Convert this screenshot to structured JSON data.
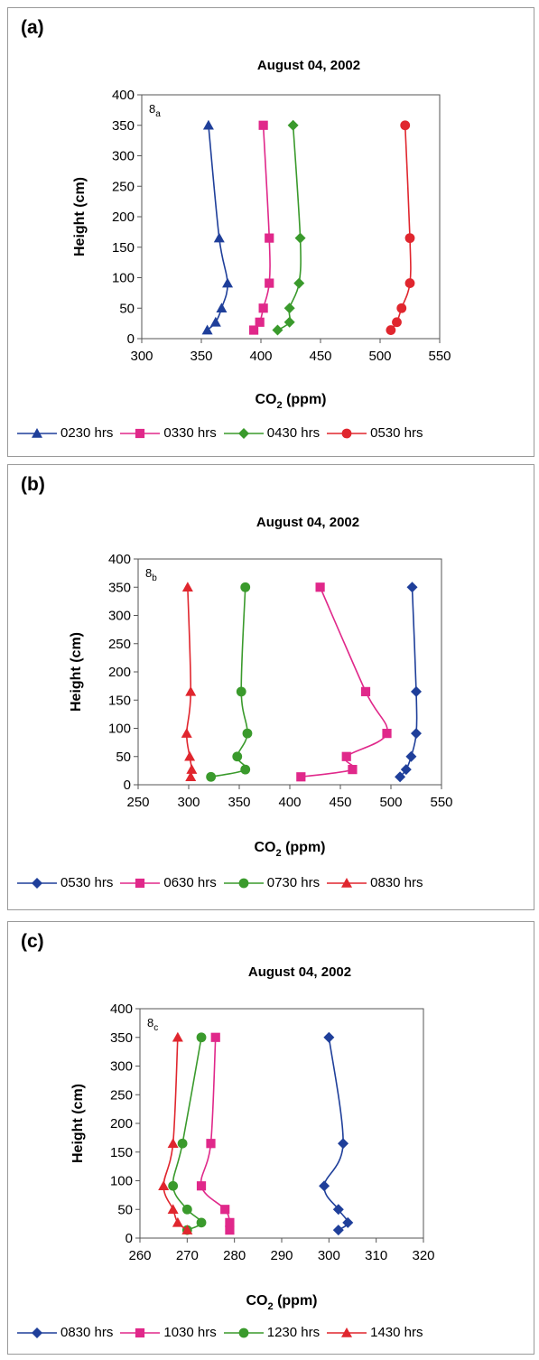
{
  "chart_data": [
    {
      "type": "line",
      "panel_label": "(a)",
      "title": "August 04, 2002",
      "inset_label": "8a",
      "xlabel": "CO2 (ppm)",
      "ylabel": "Height (cm)",
      "xlim": [
        300,
        550
      ],
      "ylim": [
        0,
        400
      ],
      "xticks": [
        300,
        350,
        400,
        450,
        500,
        550
      ],
      "yticks": [
        0,
        50,
        100,
        150,
        200,
        250,
        300,
        350,
        400
      ],
      "grid": false,
      "legend_position": "bottom",
      "series": [
        {
          "name": "0230 hrs",
          "color": "#1f3f9a",
          "marker": "triangle",
          "points": [
            [
              355,
              14
            ],
            [
              362,
              27
            ],
            [
              367,
              50
            ],
            [
              372,
              91
            ],
            [
              365,
              165
            ],
            [
              356,
              350
            ]
          ]
        },
        {
          "name": "0330 hrs",
          "color": "#e0288a",
          "marker": "square",
          "points": [
            [
              394,
              14
            ],
            [
              399,
              27
            ],
            [
              402,
              50
            ],
            [
              407,
              91
            ],
            [
              407,
              165
            ],
            [
              402,
              350
            ]
          ]
        },
        {
          "name": "0430 hrs",
          "color": "#3a9a2c",
          "marker": "diamond",
          "points": [
            [
              414,
              14
            ],
            [
              424,
              27
            ],
            [
              424,
              50
            ],
            [
              432,
              91
            ],
            [
              433,
              165
            ],
            [
              427,
              350
            ]
          ]
        },
        {
          "name": "0530 hrs",
          "color": "#e0262e",
          "marker": "circle",
          "points": [
            [
              509,
              14
            ],
            [
              514,
              27
            ],
            [
              518,
              50
            ],
            [
              525,
              91
            ],
            [
              525,
              165
            ],
            [
              521,
              350
            ]
          ]
        }
      ]
    },
    {
      "type": "line",
      "panel_label": "(b)",
      "title": "August 04, 2002",
      "inset_label": "8b",
      "xlabel": "CO2 (ppm)",
      "ylabel": "Height (cm)",
      "xlim": [
        250,
        550
      ],
      "ylim": [
        0,
        400
      ],
      "xticks": [
        250,
        300,
        350,
        400,
        450,
        500,
        550
      ],
      "yticks": [
        0,
        50,
        100,
        150,
        200,
        250,
        300,
        350,
        400
      ],
      "grid": false,
      "legend_position": "bottom",
      "series": [
        {
          "name": "0530 hrs",
          "color": "#1f3f9a",
          "marker": "diamond",
          "points": [
            [
              509,
              14
            ],
            [
              515,
              27
            ],
            [
              520,
              50
            ],
            [
              525,
              91
            ],
            [
              525,
              165
            ],
            [
              521,
              350
            ]
          ]
        },
        {
          "name": "0630 hrs",
          "color": "#e0288a",
          "marker": "square",
          "points": [
            [
              411,
              14
            ],
            [
              462,
              27
            ],
            [
              456,
              50
            ],
            [
              496,
              91
            ],
            [
              475,
              165
            ],
            [
              430,
              350
            ]
          ]
        },
        {
          "name": "0730 hrs",
          "color": "#3a9a2c",
          "marker": "circle",
          "points": [
            [
              322,
              14
            ],
            [
              356,
              27
            ],
            [
              348,
              50
            ],
            [
              358,
              91
            ],
            [
              352,
              165
            ],
            [
              356,
              350
            ]
          ]
        },
        {
          "name": "0830 hrs",
          "color": "#e0262e",
          "marker": "triangle",
          "points": [
            [
              302,
              14
            ],
            [
              303,
              27
            ],
            [
              301,
              50
            ],
            [
              298,
              91
            ],
            [
              302,
              165
            ],
            [
              299,
              350
            ]
          ]
        }
      ]
    },
    {
      "type": "line",
      "panel_label": "(c)",
      "title": "August 04, 2002",
      "inset_label": "8c",
      "xlabel": "CO2 (ppm)",
      "ylabel": "Height (cm)",
      "xlim": [
        260,
        320
      ],
      "ylim": [
        0,
        400
      ],
      "xticks": [
        260,
        270,
        280,
        290,
        300,
        310,
        320
      ],
      "yticks": [
        0,
        50,
        100,
        150,
        200,
        250,
        300,
        350,
        400
      ],
      "grid": false,
      "legend_position": "bottom",
      "series": [
        {
          "name": "0830 hrs",
          "color": "#1f3f9a",
          "marker": "diamond",
          "points": [
            [
              302,
              14
            ],
            [
              304,
              27
            ],
            [
              302,
              50
            ],
            [
              299,
              91
            ],
            [
              303,
              165
            ],
            [
              300,
              350
            ]
          ]
        },
        {
          "name": "1030 hrs",
          "color": "#e0288a",
          "marker": "square",
          "points": [
            [
              279,
              14
            ],
            [
              279,
              27
            ],
            [
              278,
              50
            ],
            [
              273,
              91
            ],
            [
              275,
              165
            ],
            [
              276,
              350
            ]
          ]
        },
        {
          "name": "1230 hrs",
          "color": "#3a9a2c",
          "marker": "circle",
          "points": [
            [
              270,
              14
            ],
            [
              273,
              27
            ],
            [
              270,
              50
            ],
            [
              267,
              91
            ],
            [
              269,
              165
            ],
            [
              273,
              350
            ]
          ]
        },
        {
          "name": "1430 hrs",
          "color": "#e0262e",
          "marker": "triangle",
          "points": [
            [
              270,
              14
            ],
            [
              268,
              27
            ],
            [
              267,
              50
            ],
            [
              265,
              91
            ],
            [
              267,
              165
            ],
            [
              268,
              350
            ]
          ]
        }
      ]
    }
  ]
}
